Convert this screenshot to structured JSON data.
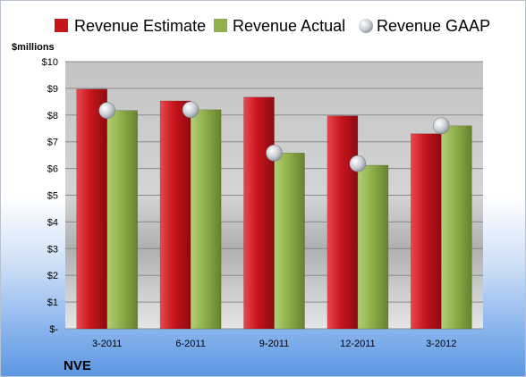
{
  "chart_data": {
    "type": "bar",
    "title": "",
    "ylabel": "$millions",
    "xlabel": "",
    "categories": [
      "3-2011",
      "6-2011",
      "9-2011",
      "12-2011",
      "3-2012"
    ],
    "series": [
      {
        "name": "Revenue Estimate",
        "kind": "bar",
        "color": "#c8151c",
        "values": [
          8.97,
          8.53,
          8.67,
          7.97,
          7.3
        ]
      },
      {
        "name": "Revenue Actual",
        "kind": "bar",
        "color": "#8fb04a",
        "values": [
          8.17,
          8.2,
          6.58,
          6.12,
          7.6
        ]
      },
      {
        "name": "Revenue GAAP",
        "kind": "marker",
        "color": "#c9cdd4",
        "values": [
          8.17,
          8.2,
          6.58,
          6.18,
          7.6
        ]
      }
    ],
    "ylim": [
      0,
      10
    ],
    "yticks": [
      0,
      1,
      2,
      3,
      4,
      5,
      6,
      7,
      8,
      9,
      10
    ],
    "ytick_labels": [
      "$-",
      "$1",
      "$2",
      "$3",
      "$4",
      "$5",
      "$6",
      "$7",
      "$8",
      "$9",
      "$10"
    ],
    "grid": true,
    "legend_position": "top"
  },
  "footer": {
    "company": "NVE"
  }
}
